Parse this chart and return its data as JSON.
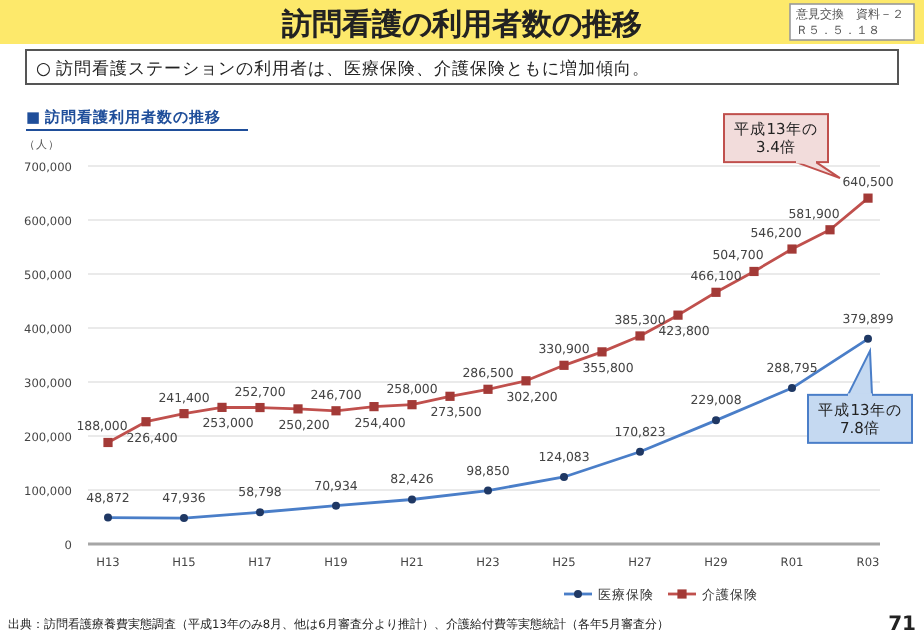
{
  "chart_data": {
    "type": "line",
    "title": "訪問看護の利用者数の推移",
    "subtitle": "○ 訪問看護ステーションの利用者は、医療保険、介護保険ともに増加傾向。",
    "annotations": [
      "意見交換　資料－２",
      "Ｒ５．５．１８",
      "■ 訪問看護利用者数の推移",
      "平成13年の\n3.4倍",
      "平成13年の\n7.8倍",
      "出典：訪問看護療養費実態調査（平成13年のみ8月、他は6月審査分より推計）、介護給付費等実態統計（各年5月審査分）",
      "71"
    ],
    "ylabel": "（人）",
    "categories": [
      "H13",
      null,
      "H15",
      null,
      "H17",
      null,
      "H19",
      null,
      "H21",
      null,
      "H23",
      null,
      "H25",
      null,
      "H27",
      null,
      "H29",
      null,
      "R01",
      null,
      "R03"
    ],
    "series": [
      {
        "name": "医療保険",
        "color": "#4a7ec8",
        "marker": "circle",
        "x": [
          "H13",
          "H15",
          "H17",
          "H19",
          "H21",
          "H23",
          "H25",
          "H27",
          "H29",
          "R01",
          "R03"
        ],
        "values": [
          48872,
          47936,
          58798,
          70934,
          82426,
          98850,
          124083,
          170823,
          229008,
          288795,
          379899
        ],
        "value_labels": [
          "48,872",
          "47,936",
          "58,798",
          "70,934",
          "82,426",
          "98,850",
          "124,083",
          "170,823",
          "229,008",
          "288,795",
          "379,899"
        ]
      },
      {
        "name": "介護保険",
        "color": "#c0504d",
        "marker": "square",
        "values": [
          188000,
          226400,
          241400,
          253000,
          252700,
          250200,
          246700,
          254400,
          258000,
          273500,
          286500,
          302200,
          330900,
          355800,
          385300,
          423800,
          466100,
          504700,
          546200,
          581900,
          640500
        ],
        "value_labels": [
          "188,000",
          "226,400",
          "241,400",
          "253,000",
          "252,700",
          "250,200",
          "246,700",
          "254,400",
          "258,000",
          "273,500",
          "286,500",
          "302,200",
          "330,900",
          "355,800",
          "385,300",
          "423,800",
          "466,100",
          "504,700",
          "546,200",
          "581,900",
          "640,500"
        ]
      }
    ],
    "ylim": [
      0,
      700000
    ],
    "yticks": [
      {
        "value": 0,
        "label": "0"
      },
      {
        "value": 100000,
        "label": "100,000"
      },
      {
        "value": 200000,
        "label": "200,000"
      },
      {
        "value": 300000,
        "label": "300,000"
      },
      {
        "value": 400000,
        "label": "400,000"
      },
      {
        "value": 500000,
        "label": "500,000"
      },
      {
        "value": 600000,
        "label": "600,000"
      },
      {
        "value": 700000,
        "label": "700,000"
      }
    ],
    "grid": "y",
    "legend": "bottom",
    "line_style": "solid"
  }
}
